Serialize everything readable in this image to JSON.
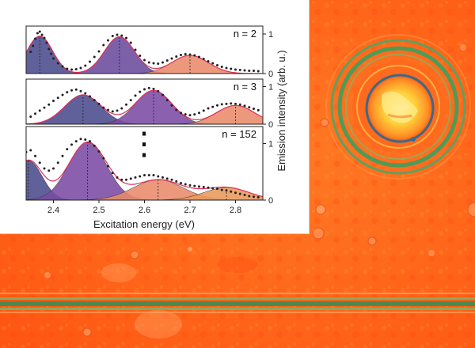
{
  "figure": {
    "background": {
      "description_free": true,
      "colors": {
        "orange": "#ff5a14",
        "light_orange": "#ff8a2a",
        "green_ring": "#4fa05a",
        "yellow": "#ffe35a",
        "stripe_green": "#7aa35a"
      }
    }
  },
  "chart_data": {
    "type": "area",
    "xlabel": "Excitation energy (eV)",
    "ylabel": "Emission intensity (arb. u.)",
    "xlim": [
      2.34,
      2.86
    ],
    "x_ticks": [
      "2.4",
      "2.5",
      "2.6",
      "2.7",
      "2.8"
    ],
    "x_tick_values": [
      2.4,
      2.5,
      2.6,
      2.7,
      2.8
    ],
    "y_ticks": [
      "0",
      "1"
    ],
    "ellipsis": "⋮",
    "colors": {
      "blue_violet": "#4a4a8c",
      "violet": "#6a4a9c",
      "purple": "#7a4aa4",
      "salmon": "#e88a6a",
      "orange": "#e8985a",
      "fit_line": "#e0305a",
      "points": "#222222"
    },
    "panels": [
      {
        "label": "n = 2",
        "ylim": [
          0,
          1.2
        ],
        "peaks": [
          {
            "center": 2.37,
            "height": 0.95,
            "width": 0.028,
            "color": "#4a4a8c"
          },
          {
            "center": 2.545,
            "height": 0.93,
            "width": 0.033,
            "color": "#6a4a9c"
          },
          {
            "center": 2.7,
            "height": 0.46,
            "width": 0.04,
            "color": "#e88a6a"
          }
        ],
        "points": [
          [
            2.35,
            0.55
          ],
          [
            2.355,
            0.7
          ],
          [
            2.36,
            0.88
          ],
          [
            2.365,
            1.02
          ],
          [
            2.37,
            1.06
          ],
          [
            2.375,
            0.98
          ],
          [
            2.38,
            0.9
          ],
          [
            2.385,
            0.78
          ],
          [
            2.39,
            0.62
          ],
          [
            2.395,
            0.5
          ],
          [
            2.4,
            0.38
          ],
          [
            2.41,
            0.26
          ],
          [
            2.42,
            0.18
          ],
          [
            2.43,
            0.12
          ],
          [
            2.44,
            0.1
          ],
          [
            2.45,
            0.11
          ],
          [
            2.46,
            0.14
          ],
          [
            2.47,
            0.2
          ],
          [
            2.48,
            0.3
          ],
          [
            2.49,
            0.42
          ],
          [
            2.5,
            0.56
          ],
          [
            2.51,
            0.72
          ],
          [
            2.52,
            0.84
          ],
          [
            2.53,
            0.95
          ],
          [
            2.54,
            0.98
          ],
          [
            2.55,
            0.96
          ],
          [
            2.56,
            0.9
          ],
          [
            2.57,
            0.78
          ],
          [
            2.58,
            0.6
          ],
          [
            2.59,
            0.45
          ],
          [
            2.6,
            0.34
          ],
          [
            2.61,
            0.28
          ],
          [
            2.62,
            0.26
          ],
          [
            2.63,
            0.25
          ],
          [
            2.64,
            0.28
          ],
          [
            2.65,
            0.33
          ],
          [
            2.66,
            0.38
          ],
          [
            2.67,
            0.43
          ],
          [
            2.68,
            0.47
          ],
          [
            2.69,
            0.49
          ],
          [
            2.7,
            0.48
          ],
          [
            2.71,
            0.46
          ],
          [
            2.72,
            0.42
          ],
          [
            2.73,
            0.37
          ],
          [
            2.74,
            0.31
          ],
          [
            2.75,
            0.26
          ],
          [
            2.76,
            0.21
          ],
          [
            2.77,
            0.17
          ],
          [
            2.78,
            0.14
          ],
          [
            2.79,
            0.12
          ],
          [
            2.8,
            0.1
          ],
          [
            2.81,
            0.09
          ],
          [
            2.82,
            0.08
          ],
          [
            2.83,
            0.07
          ],
          [
            2.84,
            0.07
          ],
          [
            2.85,
            0.06
          ]
        ]
      },
      {
        "label": "n = 3",
        "ylim": [
          0,
          1.2
        ],
        "peaks": [
          {
            "center": 2.465,
            "height": 0.78,
            "width": 0.04,
            "color": "#4a4a8c"
          },
          {
            "center": 2.62,
            "height": 0.9,
            "width": 0.04,
            "color": "#7a4aa4"
          },
          {
            "center": 2.8,
            "height": 0.5,
            "width": 0.042,
            "color": "#e88a6a"
          }
        ],
        "points": [
          [
            2.35,
            0.2
          ],
          [
            2.36,
            0.28
          ],
          [
            2.37,
            0.36
          ],
          [
            2.38,
            0.44
          ],
          [
            2.39,
            0.52
          ],
          [
            2.4,
            0.62
          ],
          [
            2.41,
            0.7
          ],
          [
            2.42,
            0.78
          ],
          [
            2.43,
            0.85
          ],
          [
            2.44,
            0.9
          ],
          [
            2.45,
            0.92
          ],
          [
            2.46,
            0.88
          ],
          [
            2.47,
            0.82
          ],
          [
            2.48,
            0.74
          ],
          [
            2.49,
            0.64
          ],
          [
            2.5,
            0.54
          ],
          [
            2.51,
            0.44
          ],
          [
            2.52,
            0.38
          ],
          [
            2.53,
            0.34
          ],
          [
            2.54,
            0.36
          ],
          [
            2.55,
            0.42
          ],
          [
            2.56,
            0.52
          ],
          [
            2.57,
            0.64
          ],
          [
            2.58,
            0.76
          ],
          [
            2.59,
            0.86
          ],
          [
            2.6,
            0.93
          ],
          [
            2.61,
            0.96
          ],
          [
            2.62,
            0.94
          ],
          [
            2.63,
            0.88
          ],
          [
            2.64,
            0.78
          ],
          [
            2.65,
            0.64
          ],
          [
            2.66,
            0.5
          ],
          [
            2.67,
            0.38
          ],
          [
            2.68,
            0.3
          ],
          [
            2.69,
            0.26
          ],
          [
            2.7,
            0.24
          ],
          [
            2.71,
            0.26
          ],
          [
            2.72,
            0.3
          ],
          [
            2.73,
            0.36
          ],
          [
            2.74,
            0.42
          ],
          [
            2.75,
            0.46
          ],
          [
            2.76,
            0.5
          ],
          [
            2.77,
            0.53
          ],
          [
            2.78,
            0.54
          ],
          [
            2.79,
            0.55
          ],
          [
            2.8,
            0.54
          ],
          [
            2.81,
            0.52
          ],
          [
            2.82,
            0.49
          ],
          [
            2.83,
            0.45
          ],
          [
            2.84,
            0.41
          ],
          [
            2.85,
            0.37
          ]
        ]
      },
      {
        "label": "n = 152",
        "ylim": [
          0,
          1.3
        ],
        "peaks": [
          {
            "center": 2.345,
            "height": 0.7,
            "width": 0.03,
            "color": "#4a4a8c"
          },
          {
            "center": 2.475,
            "height": 1.02,
            "width": 0.042,
            "color": "#7a4aa4"
          },
          {
            "center": 2.63,
            "height": 0.36,
            "width": 0.055,
            "color": "#e88a6a"
          },
          {
            "center": 2.78,
            "height": 0.22,
            "width": 0.05,
            "color": "#e8985a"
          }
        ],
        "points": [
          [
            2.34,
            0.85
          ],
          [
            2.35,
            0.88
          ],
          [
            2.36,
            0.78
          ],
          [
            2.37,
            0.66
          ],
          [
            2.38,
            0.56
          ],
          [
            2.39,
            0.52
          ],
          [
            2.4,
            0.56
          ],
          [
            2.41,
            0.66
          ],
          [
            2.42,
            0.78
          ],
          [
            2.43,
            0.9
          ],
          [
            2.44,
            0.98
          ],
          [
            2.45,
            1.04
          ],
          [
            2.46,
            1.08
          ],
          [
            2.47,
            1.07
          ],
          [
            2.48,
            1.04
          ],
          [
            2.49,
            0.96
          ],
          [
            2.5,
            0.86
          ],
          [
            2.51,
            0.74
          ],
          [
            2.52,
            0.6
          ],
          [
            2.53,
            0.48
          ],
          [
            2.54,
            0.4
          ],
          [
            2.55,
            0.36
          ],
          [
            2.56,
            0.36
          ],
          [
            2.57,
            0.38
          ],
          [
            2.58,
            0.4
          ],
          [
            2.59,
            0.42
          ],
          [
            2.6,
            0.44
          ],
          [
            2.61,
            0.44
          ],
          [
            2.62,
            0.44
          ],
          [
            2.63,
            0.42
          ],
          [
            2.64,
            0.4
          ],
          [
            2.65,
            0.38
          ],
          [
            2.66,
            0.36
          ],
          [
            2.67,
            0.33
          ],
          [
            2.68,
            0.3
          ],
          [
            2.69,
            0.28
          ],
          [
            2.7,
            0.26
          ],
          [
            2.71,
            0.25
          ],
          [
            2.72,
            0.24
          ],
          [
            2.73,
            0.23
          ],
          [
            2.74,
            0.22
          ],
          [
            2.75,
            0.21
          ],
          [
            2.76,
            0.2
          ],
          [
            2.77,
            0.18
          ],
          [
            2.78,
            0.17
          ],
          [
            2.79,
            0.15
          ],
          [
            2.8,
            0.13
          ],
          [
            2.81,
            0.11
          ],
          [
            2.82,
            0.09
          ],
          [
            2.83,
            0.07
          ],
          [
            2.84,
            0.06
          ],
          [
            2.85,
            0.05
          ]
        ]
      }
    ]
  }
}
